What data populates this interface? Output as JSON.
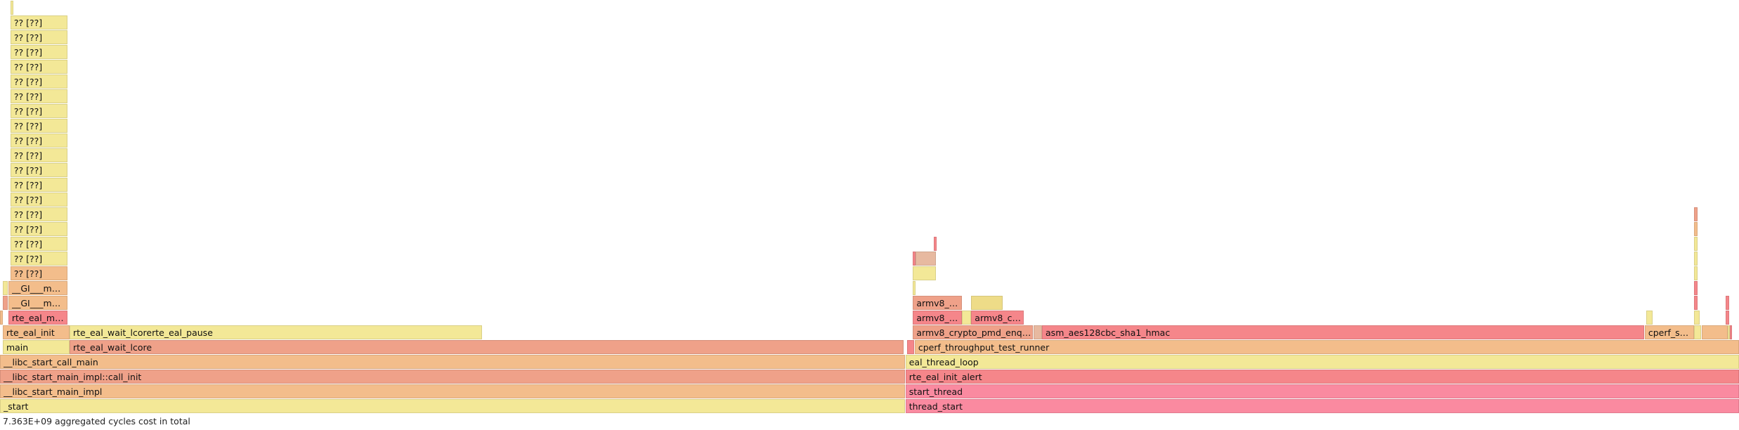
{
  "chart_data": {
    "type": "flamegraph",
    "title": "",
    "total_label": "7.363E+09 aggregated cycles cost in total",
    "palette": {
      "yellow": "#f3e897",
      "yellow2": "#eedc88",
      "orange": "#f3bd8b",
      "salmon": "#efa189",
      "red": "#f5868a",
      "pink": "#fa8aa0",
      "tan": "#e7b9a0"
    },
    "frames": [
      {
        "name": "_start",
        "depth": 0,
        "start": 0.0,
        "width": 0.5205,
        "color": "yellow"
      },
      {
        "name": "thread_start",
        "depth": 0,
        "start": 0.5207,
        "width": 0.4793,
        "color": "pink"
      },
      {
        "name": "__libc_start_main_impl",
        "depth": 1,
        "start": 0.0,
        "width": 0.5205,
        "color": "orange"
      },
      {
        "name": "start_thread",
        "depth": 1,
        "start": 0.5207,
        "width": 0.4793,
        "color": "pink"
      },
      {
        "name": "__libc_start_main_impl::call_init",
        "depth": 2,
        "start": 0.0,
        "width": 0.5205,
        "color": "salmon"
      },
      {
        "name": "rte_eal_init_alert",
        "depth": 2,
        "start": 0.5207,
        "width": 0.4793,
        "color": "red"
      },
      {
        "name": "__libc_start_call_main",
        "depth": 3,
        "start": 0.0,
        "width": 0.5205,
        "color": "orange"
      },
      {
        "name": "eal_thread_loop",
        "depth": 3,
        "start": 0.5207,
        "width": 0.4793,
        "color": "yellow"
      },
      {
        "name": "main",
        "depth": 4,
        "start": 0.0016,
        "width": 0.0384,
        "color": "yellow"
      },
      {
        "name": "rte_eal_wait_lcore",
        "depth": 4,
        "start": 0.04,
        "width": 0.4796,
        "color": "salmon"
      },
      {
        "name": "",
        "depth": 4,
        "start": 0.5216,
        "width": 0.004,
        "color": "red"
      },
      {
        "name": "cperf_throughput_test_runner",
        "depth": 4,
        "start": 0.526,
        "width": 0.474,
        "color": "orange"
      },
      {
        "name": "rte_eal_init",
        "depth": 5,
        "start": 0.0016,
        "width": 0.0384,
        "color": "orange"
      },
      {
        "name": "rte_eal_wait_lcorerte_eal_pause",
        "depth": 5,
        "start": 0.04,
        "width": 0.237,
        "color": "yellow"
      },
      {
        "name": "armv8_crypto_pmd_enqueue_burst",
        "depth": 5,
        "start": 0.525,
        "width": 0.069,
        "color": "salmon"
      },
      {
        "name": "",
        "depth": 5,
        "start": 0.5945,
        "width": 0.0045,
        "color": "tan"
      },
      {
        "name": "asm_aes128cbc_sha1_hmac",
        "depth": 5,
        "start": 0.5992,
        "width": 0.3462,
        "color": "red"
      },
      {
        "name": "cperf_set_ops",
        "depth": 5,
        "start": 0.9458,
        "width": 0.0282,
        "color": "orange"
      },
      {
        "name": "",
        "depth": 5,
        "start": 0.9742,
        "width": 0.004,
        "color": "yellow"
      },
      {
        "name": "",
        "depth": 5,
        "start": 0.9784,
        "width": 0.015,
        "color": "orange"
      },
      {
        "name": "",
        "depth": 5,
        "start": 0.9935,
        "width": 0.0012,
        "color": "yellow"
      },
      {
        "name": "",
        "depth": 5,
        "start": 0.9948,
        "width": 0.0012,
        "color": "red"
      },
      {
        "name": "",
        "depth": 6,
        "start": 0.0,
        "width": 0.0016,
        "color": "orange"
      },
      {
        "name": "rte_eal_memory_init",
        "depth": 6,
        "start": 0.0048,
        "width": 0.034,
        "color": "red"
      },
      {
        "name": "armv8_process_ops",
        "depth": 6,
        "start": 0.525,
        "width": 0.028,
        "color": "red"
      },
      {
        "name": "",
        "depth": 6,
        "start": 0.5532,
        "width": 0.005,
        "color": "yellow"
      },
      {
        "name": "armv8_crypto_op",
        "depth": 6,
        "start": 0.5585,
        "width": 0.03,
        "color": "red"
      },
      {
        "name": "",
        "depth": 6,
        "start": 0.9465,
        "width": 0.004,
        "color": "yellow"
      },
      {
        "name": "",
        "depth": 6,
        "start": 0.9742,
        "width": 0.003,
        "color": "yellow"
      },
      {
        "name": "",
        "depth": 6,
        "start": 0.9925,
        "width": 0.0018,
        "color": "red"
      },
      {
        "name": "",
        "depth": 7,
        "start": 0.0016,
        "width": 0.0028,
        "color": "salmon"
      },
      {
        "name": "__GI___mmap64",
        "depth": 7,
        "start": 0.0048,
        "width": 0.034,
        "color": "orange"
      },
      {
        "name": "armv8_process_op",
        "depth": 7,
        "start": 0.525,
        "width": 0.028,
        "color": "salmon"
      },
      {
        "name": "",
        "depth": 7,
        "start": 0.5585,
        "width": 0.018,
        "color": "yellow2"
      },
      {
        "name": "",
        "depth": 7,
        "start": 0.9742,
        "width": 0.002,
        "color": "red"
      },
      {
        "name": "",
        "depth": 7,
        "start": 0.9925,
        "width": 0.0018,
        "color": "red"
      },
      {
        "name": "",
        "depth": 8,
        "start": 0.0016,
        "width": 0.0028,
        "color": "yellow"
      },
      {
        "name": "__GI___mmap64",
        "depth": 8,
        "start": 0.0048,
        "width": 0.034,
        "color": "orange"
      },
      {
        "name": "",
        "depth": 8,
        "start": 0.525,
        "width": 0.0014,
        "color": "yellow"
      },
      {
        "name": "",
        "depth": 8,
        "start": 0.9742,
        "width": 0.002,
        "color": "red"
      },
      {
        "name": "?? [??]",
        "depth": 9,
        "start": 0.006,
        "width": 0.0328,
        "color": "orange"
      },
      {
        "name": "",
        "depth": 9,
        "start": 0.525,
        "width": 0.013,
        "color": "yellow"
      },
      {
        "name": "",
        "depth": 9,
        "start": 0.9742,
        "width": 0.002,
        "color": "yellow"
      },
      {
        "name": "?? [??]",
        "depth": 10,
        "start": 0.006,
        "width": 0.0328,
        "color": "yellow"
      },
      {
        "name": "",
        "depth": 10,
        "start": 0.525,
        "width": 0.0014,
        "color": "red"
      },
      {
        "name": "",
        "depth": 10,
        "start": 0.5264,
        "width": 0.0116,
        "color": "tan"
      },
      {
        "name": "",
        "depth": 10,
        "start": 0.9742,
        "width": 0.002,
        "color": "yellow"
      },
      {
        "name": "?? [??]",
        "depth": 11,
        "start": 0.006,
        "width": 0.0328,
        "color": "yellow"
      },
      {
        "name": "",
        "depth": 11,
        "start": 0.537,
        "width": 0.0014,
        "color": "red"
      },
      {
        "name": "",
        "depth": 11,
        "start": 0.9742,
        "width": 0.002,
        "color": "yellow"
      },
      {
        "name": "?? [??]",
        "depth": 12,
        "start": 0.006,
        "width": 0.0328,
        "color": "yellow"
      },
      {
        "name": "",
        "depth": 12,
        "start": 0.9742,
        "width": 0.002,
        "color": "orange"
      },
      {
        "name": "?? [??]",
        "depth": 13,
        "start": 0.006,
        "width": 0.0328,
        "color": "yellow"
      },
      {
        "name": "",
        "depth": 13,
        "start": 0.9742,
        "width": 0.002,
        "color": "salmon"
      },
      {
        "name": "?? [??]",
        "depth": 14,
        "start": 0.006,
        "width": 0.0328,
        "color": "yellow"
      },
      {
        "name": "?? [??]",
        "depth": 15,
        "start": 0.006,
        "width": 0.0328,
        "color": "yellow"
      },
      {
        "name": "?? [??]",
        "depth": 16,
        "start": 0.006,
        "width": 0.0328,
        "color": "yellow"
      },
      {
        "name": "?? [??]",
        "depth": 17,
        "start": 0.006,
        "width": 0.0328,
        "color": "yellow"
      },
      {
        "name": "?? [??]",
        "depth": 18,
        "start": 0.006,
        "width": 0.0328,
        "color": "yellow"
      },
      {
        "name": "?? [??]",
        "depth": 19,
        "start": 0.006,
        "width": 0.0328,
        "color": "yellow"
      },
      {
        "name": "?? [??]",
        "depth": 20,
        "start": 0.006,
        "width": 0.0328,
        "color": "yellow"
      },
      {
        "name": "?? [??]",
        "depth": 21,
        "start": 0.006,
        "width": 0.0328,
        "color": "yellow"
      },
      {
        "name": "?? [??]",
        "depth": 22,
        "start": 0.006,
        "width": 0.0328,
        "color": "yellow"
      },
      {
        "name": "?? [??]",
        "depth": 23,
        "start": 0.006,
        "width": 0.0328,
        "color": "yellow"
      },
      {
        "name": "?? [??]",
        "depth": 24,
        "start": 0.006,
        "width": 0.0328,
        "color": "yellow"
      },
      {
        "name": "?? [??]",
        "depth": 25,
        "start": 0.006,
        "width": 0.0328,
        "color": "yellow"
      },
      {
        "name": "?? [??]",
        "depth": 26,
        "start": 0.006,
        "width": 0.0328,
        "color": "yellow"
      },
      {
        "name": "",
        "depth": 27,
        "start": 0.006,
        "width": 0.0016,
        "color": "yellow"
      }
    ]
  }
}
